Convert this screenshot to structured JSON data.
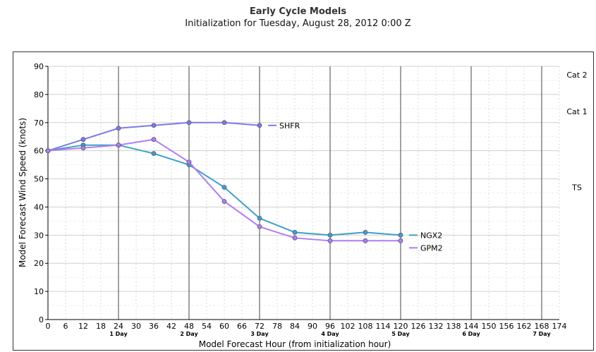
{
  "header": {
    "title": "Early Cycle Models",
    "subtitle": "Initialization for Tuesday, August 28, 2012 0:00 Z"
  },
  "chart_data": {
    "type": "line",
    "title": "Early Cycle Models",
    "subtitle": "Initialization for Tuesday, August 28, 2012 0:00 Z",
    "xlabel": "Model Forecast Hour (from initialization hour)",
    "ylabel": "Model Forecast Wind Speed (knots)",
    "xlim": [
      0,
      174
    ],
    "ylim": [
      0,
      90
    ],
    "x_ticks": [
      0,
      6,
      12,
      18,
      24,
      30,
      36,
      42,
      48,
      54,
      60,
      66,
      72,
      78,
      84,
      90,
      96,
      102,
      108,
      114,
      120,
      126,
      132,
      138,
      144,
      150,
      156,
      162,
      168,
      174
    ],
    "y_ticks": [
      0,
      10,
      20,
      30,
      40,
      50,
      60,
      70,
      80,
      90
    ],
    "day_labels": [
      {
        "x": 24,
        "label": "1 Day"
      },
      {
        "x": 48,
        "label": "2 Day"
      },
      {
        "x": 72,
        "label": "3 Day"
      },
      {
        "x": 96,
        "label": "4 Day"
      },
      {
        "x": 120,
        "label": "5 Day"
      },
      {
        "x": 144,
        "label": "6 Day"
      },
      {
        "x": 168,
        "label": "7 Day"
      }
    ],
    "intensity_labels": [
      {
        "label": "Cat 2",
        "value": 90
      },
      {
        "label": "Cat 1",
        "value": 77
      },
      {
        "label": "TS",
        "value": 50
      }
    ],
    "grid": true,
    "series": [
      {
        "name": "SHFR",
        "color": "#7b7be8",
        "x": [
          0,
          12,
          24,
          36,
          48,
          60,
          72
        ],
        "y": [
          60,
          64,
          68,
          69,
          70,
          70,
          69
        ]
      },
      {
        "name": "NGX2",
        "color": "#3fa0c8",
        "x": [
          0,
          12,
          24,
          36,
          48,
          60,
          72,
          84,
          96,
          108,
          120
        ],
        "y": [
          60,
          62,
          62,
          59,
          55,
          47,
          36,
          31,
          30,
          31,
          30
        ]
      },
      {
        "name": "GPM2",
        "color": "#b07ef0",
        "x": [
          0,
          12,
          24,
          36,
          48,
          60,
          72,
          84,
          96,
          108,
          120
        ],
        "y": [
          60,
          61,
          62,
          64,
          56,
          42,
          33,
          29,
          28,
          28,
          28
        ]
      }
    ]
  }
}
